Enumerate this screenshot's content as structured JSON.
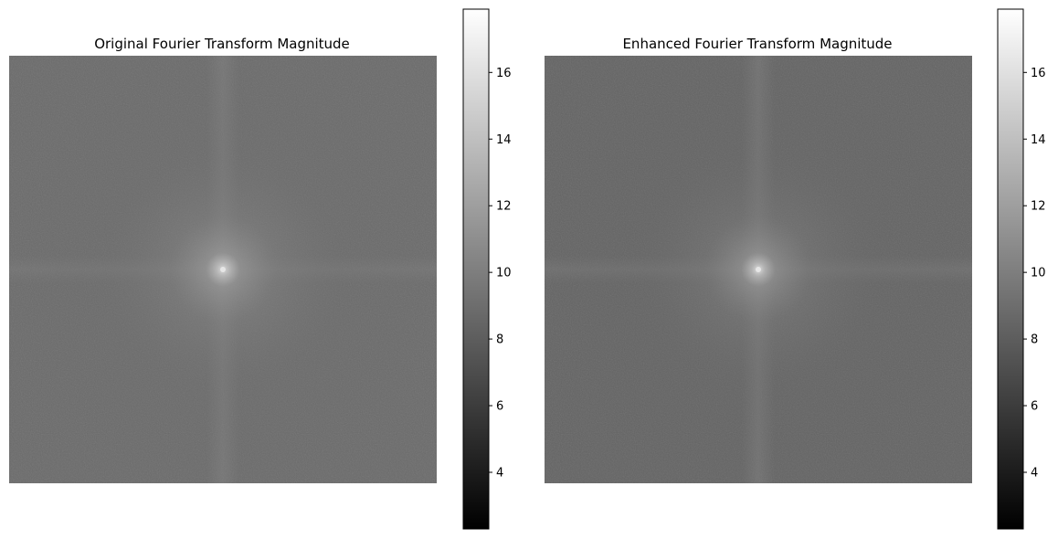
{
  "chart_data": [
    {
      "type": "heatmap",
      "title": "Original Fourier Transform Magnitude",
      "colormap": "gray",
      "axes_visible": false,
      "grid": false,
      "colorbar": {
        "range": [
          2.3,
          17.9
        ],
        "ticks": [
          4,
          6,
          8,
          10,
          12,
          14,
          16
        ],
        "tick_labels": [
          "4",
          "6",
          "8",
          "10",
          "12",
          "14",
          "16"
        ]
      },
      "image_description_values": {
        "background_level": 7.6,
        "peak_level": 17.9,
        "center": [
          0.5,
          0.5
        ]
      }
    },
    {
      "type": "heatmap",
      "title": "Enhanced Fourier Transform Magnitude",
      "colormap": "gray",
      "axes_visible": false,
      "grid": false,
      "colorbar": {
        "range": [
          2.3,
          17.9
        ],
        "ticks": [
          4,
          6,
          8,
          10,
          12,
          14,
          16
        ],
        "tick_labels": [
          "4",
          "6",
          "8",
          "10",
          "12",
          "14",
          "16"
        ]
      },
      "image_description_values": {
        "background_level": 7.3,
        "peak_level": 17.9,
        "center": [
          0.5,
          0.5
        ]
      }
    }
  ]
}
